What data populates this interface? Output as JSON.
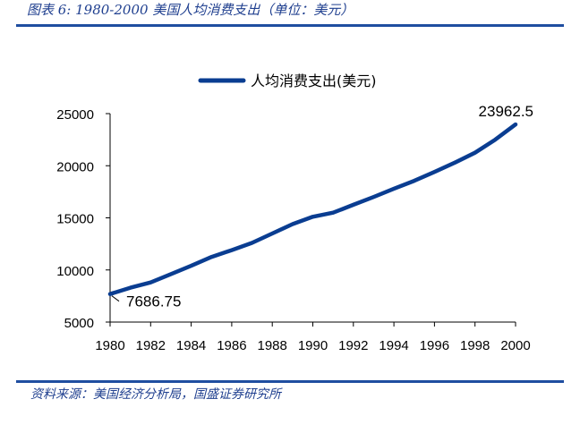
{
  "figure": {
    "title": "图表 6:  1980-2000 美国人均消费支出（单位：美元）",
    "source": "资料来源：美国经济分析局，国盛证券研究所"
  },
  "colors": {
    "line": "#0a3d91",
    "rule": "#1f4ea0",
    "text_accent": "#1f3f8f"
  },
  "chart_data": {
    "type": "line",
    "title": "",
    "xlabel": "",
    "ylabel": "",
    "x": [
      1980,
      1981,
      1982,
      1983,
      1984,
      1985,
      1986,
      1987,
      1988,
      1989,
      1990,
      1991,
      1992,
      1993,
      1994,
      1995,
      1996,
      1997,
      1998,
      1999,
      2000
    ],
    "series": [
      {
        "name": "人均消费支出(美元)",
        "values": [
          7686.75,
          8300,
          8800,
          9600,
          10400,
          11250,
          11900,
          12600,
          13500,
          14400,
          15100,
          15500,
          16250,
          17000,
          17800,
          18550,
          19400,
          20300,
          21250,
          22500,
          23962.5
        ]
      }
    ],
    "x_ticks": [
      "1980",
      "1982",
      "1984",
      "1986",
      "1988",
      "1990",
      "1992",
      "1994",
      "1996",
      "1998",
      "2000"
    ],
    "y_ticks": [
      "5000",
      "10000",
      "15000",
      "20000",
      "25000"
    ],
    "ylim": [
      5000,
      25000
    ],
    "xlim": [
      1980,
      2000
    ],
    "grid": false,
    "legend_position": "top-center",
    "annotations": [
      {
        "x": 1980,
        "y": 7686.75,
        "text": "7686.75"
      },
      {
        "x": 2000,
        "y": 23962.5,
        "text": "23962.5"
      }
    ]
  }
}
